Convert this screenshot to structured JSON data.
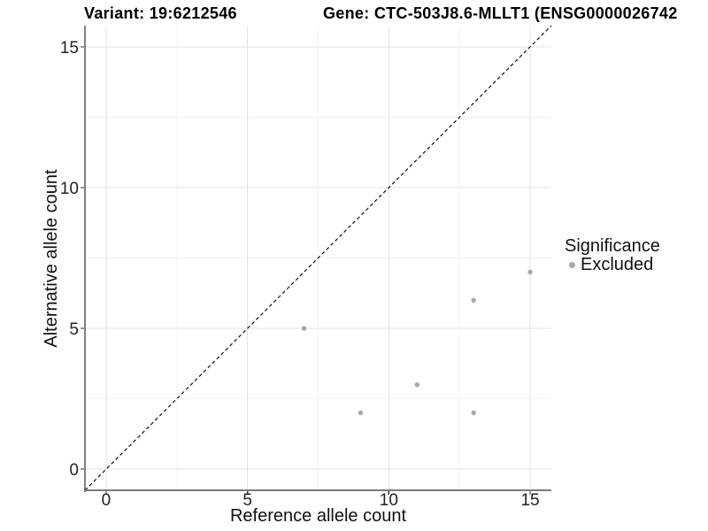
{
  "title": {
    "variant": "Variant: 19:6212546",
    "gene": "Gene: CTC-503J8.6-MLLT1 (ENSG0000026742"
  },
  "axes": {
    "x_label": "Reference allele count",
    "y_label": "Alternative allele count"
  },
  "legend": {
    "title": "Significance",
    "items": [
      {
        "label": "Excluded",
        "marker": "circle-icon",
        "color": "#a8a8a8"
      }
    ]
  },
  "colors": {
    "point": "#a8a8a8",
    "grid_major": "#e3e3e3",
    "grid_minor": "#f1f1f1",
    "axis_line_y": "#000000",
    "axis_line_x": "#7b7b7b",
    "tick": "#333333",
    "tick_label": "#222222",
    "dashed_line": "#111111"
  },
  "chart_data": {
    "type": "scatter",
    "title": "Variant: 19:6212546 | Gene: CTC-503J8.6-MLLT1 (ENSG0000026742",
    "xlabel": "Reference allele count",
    "ylabel": "Alternative allele count",
    "xlim": [
      -0.75,
      15.75
    ],
    "ylim": [
      -0.75,
      15.75
    ],
    "x_major_ticks": [
      0,
      5,
      10,
      15
    ],
    "y_major_ticks": [
      0,
      5,
      10,
      15
    ],
    "x_minor_ticks": [
      2.5,
      7.5,
      12.5
    ],
    "y_minor_ticks": [
      2.5,
      7.5,
      12.5
    ],
    "grid": "major+minor",
    "legend_position": "right",
    "identity_line": {
      "style": "dashed",
      "from": [
        -0.75,
        -0.75
      ],
      "to": [
        15.75,
        15.75
      ]
    },
    "series": [
      {
        "name": "Excluded",
        "color": "#a8a8a8",
        "points": [
          [
            7,
            5
          ],
          [
            9,
            2
          ],
          [
            11,
            3
          ],
          [
            13,
            2
          ],
          [
            13,
            6
          ],
          [
            15,
            7
          ]
        ]
      }
    ]
  }
}
